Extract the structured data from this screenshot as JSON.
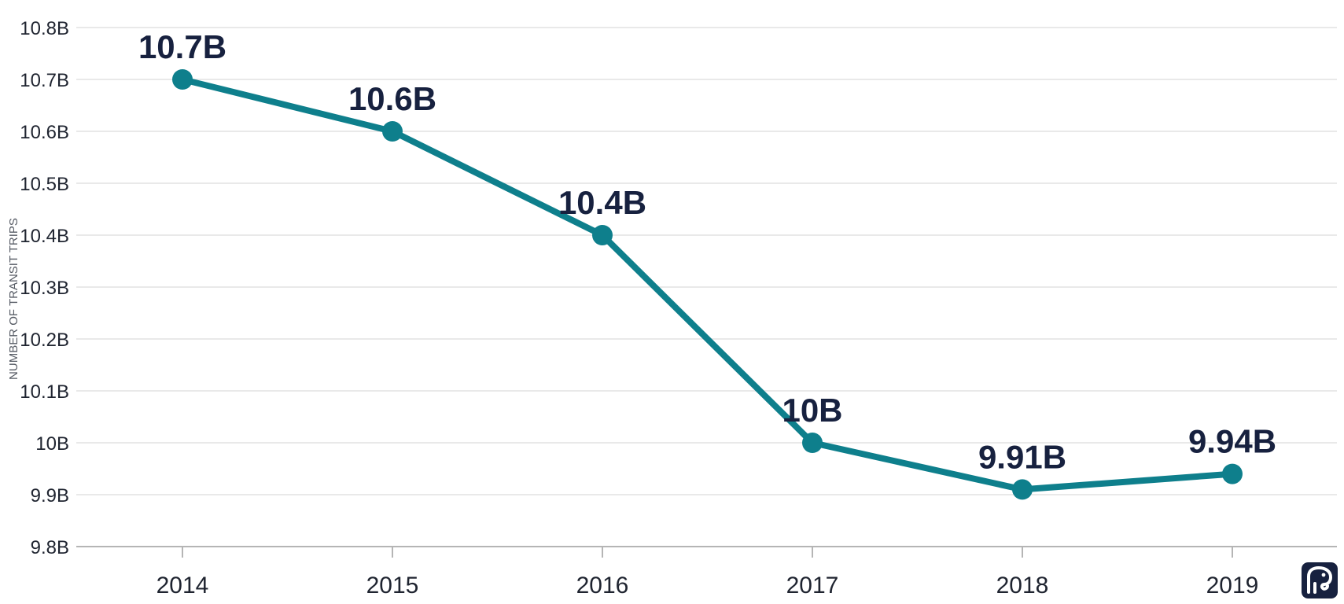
{
  "chart_data": {
    "type": "line",
    "x": [
      "2014",
      "2015",
      "2016",
      "2017",
      "2018",
      "2019"
    ],
    "series": [
      {
        "values": [
          10.7,
          10.6,
          10.4,
          10.0,
          9.91,
          9.94
        ],
        "data_labels": [
          "10.7B",
          "10.6B",
          "10.4B",
          "10B",
          "9.91B",
          "9.94B"
        ]
      }
    ],
    "ylabel": "NUMBER OF TRANSIT TRIPS",
    "xlabel": "",
    "ylim": [
      9.8,
      10.8
    ],
    "y_ticks": [
      10.8,
      10.7,
      10.6,
      10.5,
      10.4,
      10.3,
      10.2,
      10.1,
      10.0,
      9.9,
      9.8
    ],
    "y_tick_labels": [
      "10.8B",
      "10.7B",
      "10.6B",
      "10.5B",
      "10.4B",
      "10.3B",
      "10.2B",
      "10.1B",
      "10B",
      "9.9B",
      "9.8B"
    ],
    "grid": "horizontal",
    "legend": "none"
  },
  "colors": {
    "line": "#0e7f8c",
    "marker": "#0e7f8c",
    "label": "#17213f",
    "grid": "#dcdcdc",
    "axis": "#b5b5b5",
    "logo_bg": "#17213f"
  },
  "logo": {
    "icon": "elephant-icon"
  }
}
